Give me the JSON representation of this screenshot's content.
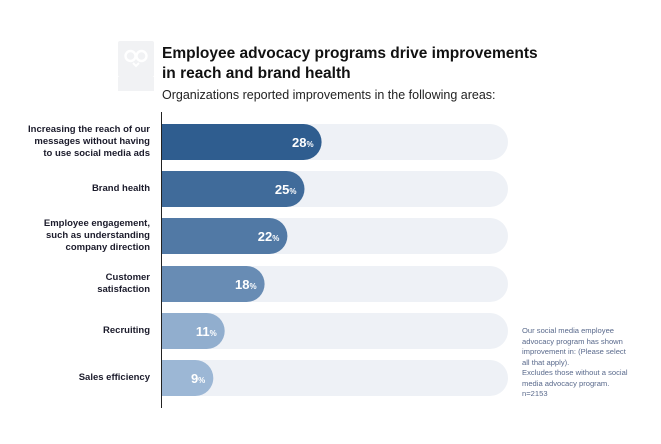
{
  "header": {
    "title": "Employee advocacy programs drive improvements in reach and brand health",
    "subtitle": "Organizations reported improvements in the following areas:",
    "logo_icon": "owl-logo-icon"
  },
  "colors": {
    "track": "#eef1f6",
    "bar_dark": "#2f5d8f",
    "bar_light": "#9cb7d5",
    "axis": "#222222"
  },
  "chart_data": {
    "type": "bar",
    "orientation": "horizontal",
    "categories": [
      "Increasing the reach of our messages without having to use social media ads",
      "Brand health",
      "Employee engagement, such as understanding company direction",
      "Customer satisfaction",
      "Recruiting",
      "Sales efficiency"
    ],
    "values": [
      28,
      25,
      22,
      18,
      11,
      9
    ],
    "value_suffix": "%",
    "xlim": [
      0,
      100
    ],
    "title": "Employee advocacy programs drive improvements in reach and brand health",
    "subtitle": "Organizations reported improvements in the following areas:"
  },
  "labels": {
    "cat_lines": [
      [
        "Increasing the reach of our",
        "messages without having",
        "to use social media ads"
      ],
      [
        "Brand health"
      ],
      [
        "Employee engagement,",
        "such as understanding",
        "company direction"
      ],
      [
        "Customer",
        "satisfaction"
      ],
      [
        "Recruiting"
      ],
      [
        "Sales efficiency"
      ]
    ]
  },
  "note": {
    "lines": [
      "Our social media employee",
      "advocacy program has shown",
      "improvement in: (Please select",
      "all that apply).",
      "Excludes those without a social",
      "media advocacy program.",
      "n=2153"
    ]
  }
}
